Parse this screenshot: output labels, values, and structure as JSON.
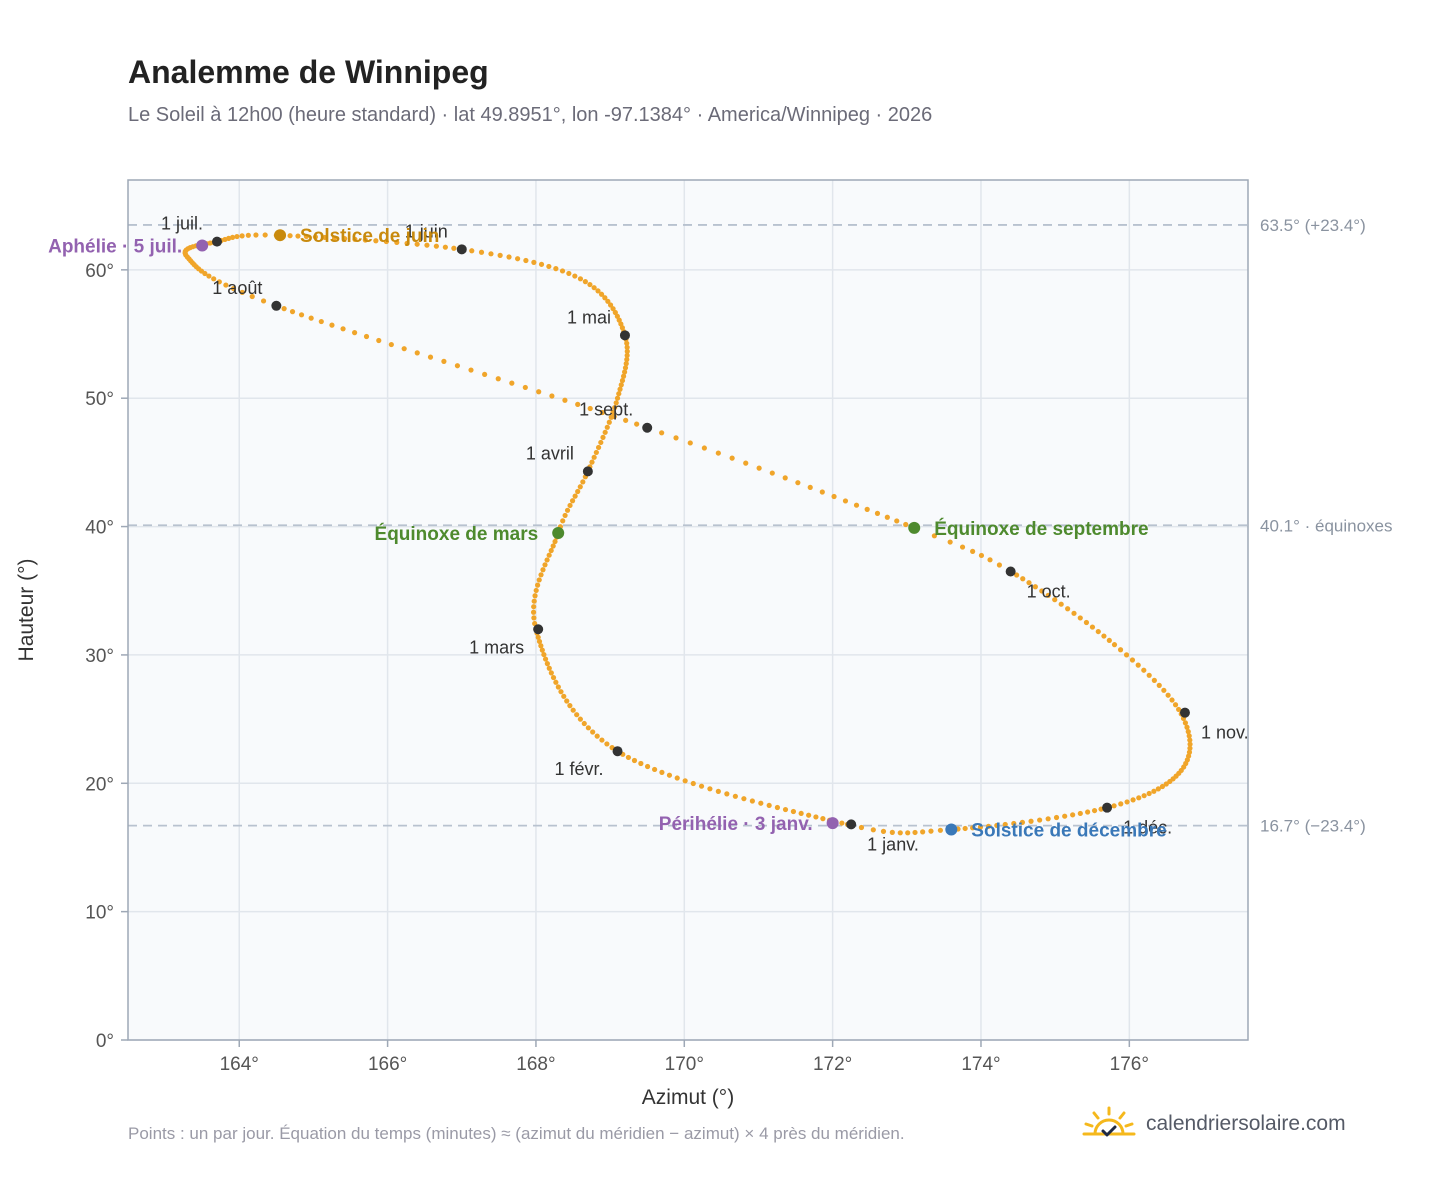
{
  "page": {
    "title": "Analemme de Winnipeg",
    "subtitle": "Le Soleil à 12h00 (heure standard) · lat 49.8951°, lon -97.1384° · America/Winnipeg · 2026",
    "footnote": "Points : un par jour. Équation du temps (minutes) ≈ (azimut du méridien − azimut) × 4 près du méridien.",
    "brand": "calendriersolaire.com"
  },
  "chart_data": {
    "type": "scatter",
    "xlabel": "Azimut (°)",
    "ylabel": "Hauteur (°)",
    "xlim": [
      162.5,
      177.6
    ],
    "ylim": [
      0,
      67
    ],
    "xticks": [
      164,
      166,
      168,
      170,
      172,
      174,
      176
    ],
    "xtick_labels": [
      "164°",
      "166°",
      "168°",
      "170°",
      "172°",
      "174°",
      "176°"
    ],
    "yticks": [
      0,
      10,
      20,
      30,
      40,
      50,
      60
    ],
    "ytick_labels": [
      "0°",
      "10°",
      "20°",
      "30°",
      "40°",
      "50°",
      "60°"
    ],
    "grid": true,
    "colors": {
      "curve": "#f0a52a",
      "month_marker": "#333333",
      "june_solstice": "#c88a0e",
      "december_solstice": "#3a78b8",
      "equinox": "#4e8a2e",
      "apsis": "#9362b0",
      "reference_line": "#b8c2cf",
      "plot_background": "#f8fafc",
      "frame": "#9ea8b6"
    },
    "reference_lines": [
      {
        "y": 63.5,
        "label": "63.5° (+23.4°)"
      },
      {
        "y": 40.1,
        "label": "40.1° · équinoxes"
      },
      {
        "y": 16.7,
        "label": "16.7° (−23.4°)"
      }
    ],
    "daily_series": {
      "description": "",
      "anchors": [
        {
          "day": 0,
          "x": 172.2,
          "y": 16.8
        },
        {
          "day": 31,
          "x": 169.1,
          "y": 22.5
        },
        {
          "day": 59,
          "x": 168.0,
          "y": 32.0
        },
        {
          "day": 78,
          "x": 168.3,
          "y": 39.5
        },
        {
          "day": 90,
          "x": 168.7,
          "y": 44.3
        },
        {
          "day": 105,
          "x": 169.1,
          "y": 50.0
        },
        {
          "day": 120,
          "x": 169.2,
          "y": 54.9
        },
        {
          "day": 136,
          "x": 168.6,
          "y": 59.3
        },
        {
          "day": 151,
          "x": 167.0,
          "y": 61.6
        },
        {
          "day": 171,
          "x": 164.5,
          "y": 62.7
        },
        {
          "day": 181,
          "x": 163.7,
          "y": 62.2
        },
        {
          "day": 195,
          "x": 163.3,
          "y": 61.0
        },
        {
          "day": 212,
          "x": 164.5,
          "y": 57.2
        },
        {
          "day": 243,
          "x": 169.5,
          "y": 47.7
        },
        {
          "day": 265,
          "x": 173.1,
          "y": 39.9
        },
        {
          "day": 273,
          "x": 174.4,
          "y": 36.5
        },
        {
          "day": 290,
          "x": 175.8,
          "y": 30.8
        },
        {
          "day": 304,
          "x": 176.7,
          "y": 25.4
        },
        {
          "day": 318,
          "x": 176.7,
          "y": 21.0
        },
        {
          "day": 334,
          "x": 175.7,
          "y": 18.1
        },
        {
          "day": 354,
          "x": 173.6,
          "y": 16.4
        },
        {
          "day": 365,
          "x": 172.2,
          "y": 16.8
        }
      ]
    },
    "month_markers": [
      {
        "label": "1 janv.",
        "x": 172.25,
        "y": 16.8,
        "label_pos": "below-right"
      },
      {
        "label": "1 févr.",
        "x": 169.1,
        "y": 22.5,
        "label_pos": "below-left"
      },
      {
        "label": "1 mars",
        "x": 168.03,
        "y": 32.0,
        "label_pos": "below-left"
      },
      {
        "label": "1 avril",
        "x": 168.7,
        "y": 44.3,
        "label_pos": "above-left"
      },
      {
        "label": "1 mai",
        "x": 169.2,
        "y": 54.9,
        "label_pos": "above-left"
      },
      {
        "label": "1 juin",
        "x": 167.0,
        "y": 61.6,
        "label_pos": "above-left"
      },
      {
        "label": "1 juil.",
        "x": 163.7,
        "y": 62.2,
        "label_pos": "above-left"
      },
      {
        "label": "1 août",
        "x": 164.5,
        "y": 57.2,
        "label_pos": "above-left"
      },
      {
        "label": "1 sept.",
        "x": 169.5,
        "y": 47.7,
        "label_pos": "above-left"
      },
      {
        "label": "1 oct.",
        "x": 174.4,
        "y": 36.5,
        "label_pos": "below-right"
      },
      {
        "label": "1 nov.",
        "x": 176.75,
        "y": 25.5,
        "label_pos": "below-right"
      },
      {
        "label": "1 déc.",
        "x": 175.7,
        "y": 18.1,
        "label_pos": "below-right"
      }
    ],
    "special_points": [
      {
        "label": "Solstice de juin",
        "x": 164.55,
        "y": 62.7,
        "color_key": "june_solstice",
        "label_pos": "right"
      },
      {
        "label": "Aphélie · 5 juil.",
        "x": 163.5,
        "y": 61.9,
        "color_key": "apsis",
        "label_pos": "left"
      },
      {
        "label": "Équinoxe de mars",
        "x": 168.3,
        "y": 39.5,
        "color_key": "equinox",
        "label_pos": "left"
      },
      {
        "label": "Équinoxe de septembre",
        "x": 173.1,
        "y": 39.9,
        "color_key": "equinox",
        "label_pos": "right"
      },
      {
        "label": "Périhélie · 3 janv.",
        "x": 172.0,
        "y": 16.9,
        "color_key": "apsis",
        "label_pos": "left"
      },
      {
        "label": "Solstice de décembre",
        "x": 173.6,
        "y": 16.4,
        "color_key": "december_solstice",
        "label_pos": "right"
      }
    ]
  }
}
